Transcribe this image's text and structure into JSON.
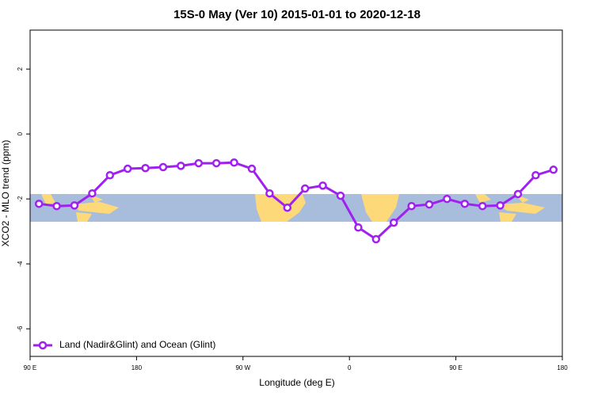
{
  "chart_data": {
    "type": "line",
    "title": "15S-0 May (Ver 10)   2015-01-01 to 2020-12-18",
    "xlabel": "Longitude (deg E)",
    "ylabel": "XCO2 - MLO trend (ppm)",
    "x": [
      97.5,
      112.5,
      127.5,
      142.5,
      157.5,
      172.5,
      187.5,
      202.5,
      217.5,
      232.5,
      247.5,
      262.5,
      277.5,
      292.5,
      307.5,
      322.5,
      337.5,
      352.5,
      367.5,
      382.5,
      397.5,
      412.5,
      427.5,
      442.5,
      457.5,
      472.5,
      487.5,
      502.5,
      517.5,
      532.5
    ],
    "series": [
      {
        "name": "Land (Nadir&Glint) and Ocean (Glint)",
        "color": "#a020f0",
        "values": [
          -2.15,
          -2.22,
          -2.2,
          -1.83,
          -1.27,
          -1.07,
          -1.05,
          -1.02,
          -0.98,
          -0.9,
          -0.9,
          -0.88,
          -1.07,
          -1.83,
          -2.27,
          -1.68,
          -1.59,
          -1.9,
          -2.88,
          -3.24,
          -2.73,
          -2.22,
          -2.17,
          -2.0,
          -2.15,
          -2.22,
          -2.2,
          -1.85,
          -1.27,
          -1.1
        ]
      }
    ],
    "xlim": [
      90,
      540
    ],
    "xticks": [
      {
        "value": 90,
        "label": "90 E"
      },
      180,
      {
        "value": 270,
        "label": "90 W"
      },
      {
        "value": 360,
        "label": "0"
      },
      {
        "value": 450,
        "label": "90 E"
      },
      {
        "value": 540,
        "label": "180"
      }
    ],
    "ylim": [
      -6.85,
      3.2
    ],
    "yticks": [
      -6,
      -4,
      -2,
      0,
      2
    ],
    "legend": "bottom-left"
  }
}
